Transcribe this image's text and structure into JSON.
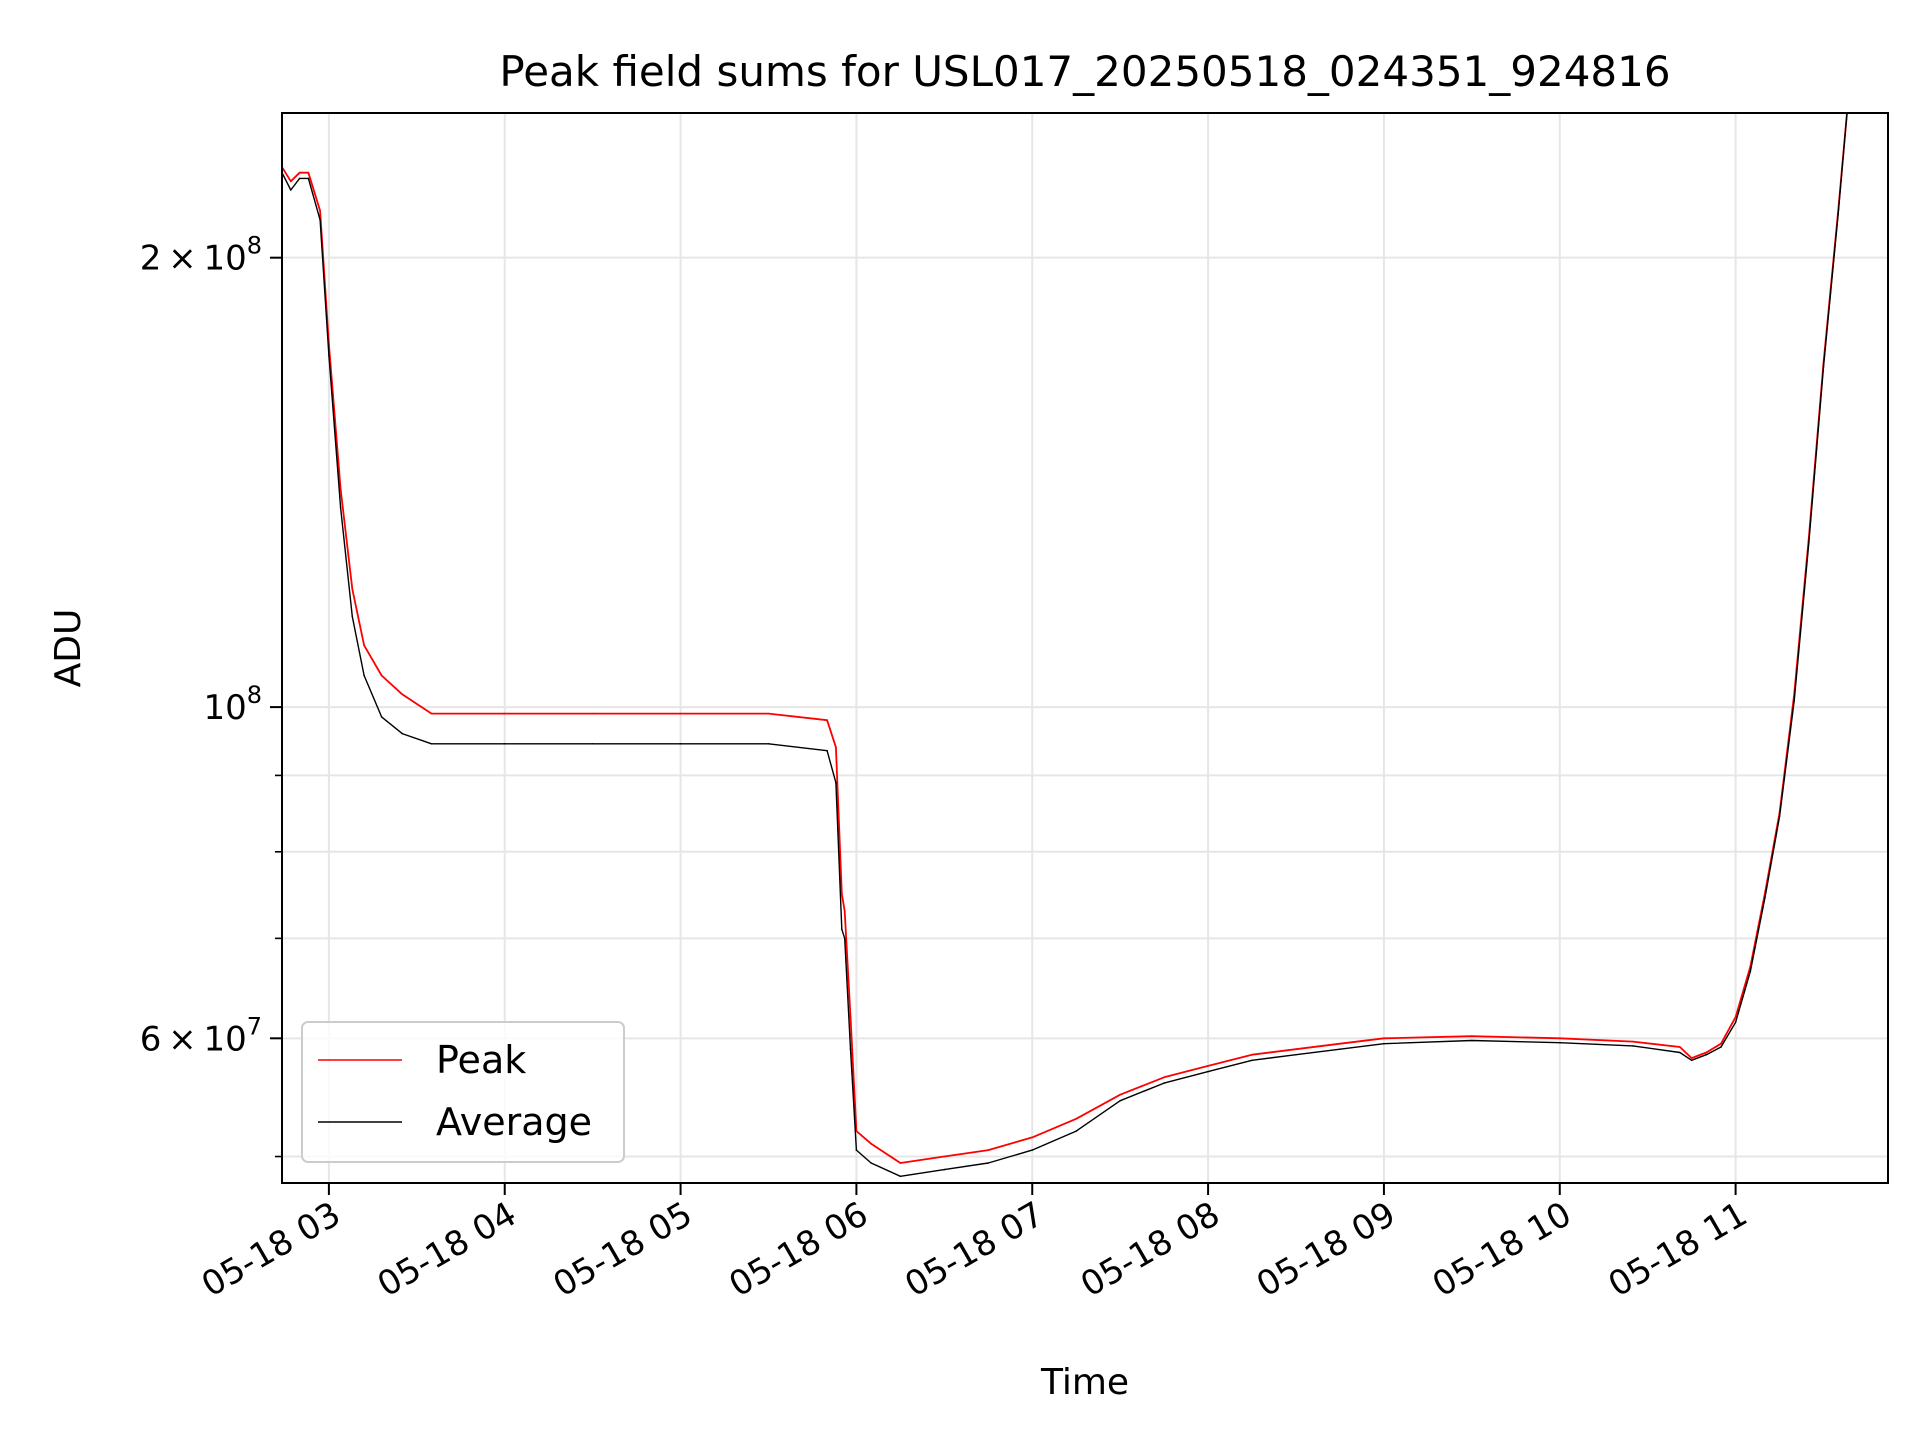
{
  "chart_data": {
    "type": "line",
    "title": "Peak field sums for USL017_20250518_024351_924816",
    "xlabel": "Time",
    "ylabel": "ADU",
    "y_scale": "log",
    "grid": true,
    "legend_position": "lower-left",
    "x_range": [
      "05-18 02:44",
      "05-18 11:52"
    ],
    "y_range": [
      48000000,
      250000000
    ],
    "x_ticks": [
      "05-18 03",
      "05-18 04",
      "05-18 05",
      "05-18 06",
      "05-18 07",
      "05-18 08",
      "05-18 09",
      "05-18 10",
      "05-18 11"
    ],
    "y_ticks": [
      {
        "value": 60000000,
        "label": "6 × 10^7",
        "mantissa": "6",
        "exponent": "7"
      },
      {
        "value": 100000000,
        "label": "10^8",
        "mantissa": "",
        "exponent": "8"
      },
      {
        "value": 200000000,
        "label": "2 × 10^8",
        "mantissa": "2",
        "exponent": "8"
      }
    ],
    "y_minor_ticks": [
      50000000,
      70000000,
      80000000,
      90000000
    ],
    "series": [
      {
        "name": "Peak",
        "color": "#ff0000",
        "x": [
          "05-18 02:44",
          "05-18 02:47",
          "05-18 02:50",
          "05-18 02:53",
          "05-18 02:57",
          "05-18 03:00",
          "05-18 03:04",
          "05-18 03:08",
          "05-18 03:12",
          "05-18 03:18",
          "05-18 03:25",
          "05-18 03:35",
          "05-18 04:00",
          "05-18 04:30",
          "05-18 05:00",
          "05-18 05:30",
          "05-18 05:50",
          "05-18 05:53",
          "05-18 05:55",
          "05-18 05:56",
          "05-18 05:58",
          "05-18 06:00",
          "05-18 06:05",
          "05-18 06:15",
          "05-18 06:30",
          "05-18 06:45",
          "05-18 07:00",
          "05-18 07:15",
          "05-18 07:30",
          "05-18 07:45",
          "05-18 08:00",
          "05-18 08:15",
          "05-18 08:30",
          "05-18 08:45",
          "05-18 09:00",
          "05-18 09:30",
          "05-18 10:00",
          "05-18 10:25",
          "05-18 10:41",
          "05-18 10:45",
          "05-18 10:50",
          "05-18 10:55",
          "05-18 11:00",
          "05-18 11:05",
          "05-18 11:10",
          "05-18 11:15",
          "05-18 11:20",
          "05-18 11:25",
          "05-18 11:30",
          "05-18 11:35",
          "05-18 11:38"
        ],
        "values": [
          230000000,
          225000000,
          228000000,
          228000000,
          215000000,
          175000000,
          140000000,
          120000000,
          110000000,
          105000000,
          102000000,
          99000000,
          99000000,
          99000000,
          99000000,
          99000000,
          98000000,
          94000000,
          75000000,
          73000000,
          62000000,
          52000000,
          51000000,
          49500000,
          50000000,
          50500000,
          51500000,
          53000000,
          55000000,
          56500000,
          57500000,
          58500000,
          59000000,
          59500000,
          60000000,
          60200000,
          60000000,
          59700000,
          59200000,
          58200000,
          58700000,
          59500000,
          62000000,
          67000000,
          75000000,
          85000000,
          102000000,
          130000000,
          170000000,
          215000000,
          250000000
        ]
      },
      {
        "name": "Average",
        "color": "#000000",
        "x": [
          "05-18 02:44",
          "05-18 02:47",
          "05-18 02:50",
          "05-18 02:53",
          "05-18 02:57",
          "05-18 03:00",
          "05-18 03:04",
          "05-18 03:08",
          "05-18 03:12",
          "05-18 03:18",
          "05-18 03:25",
          "05-18 03:35",
          "05-18 04:00",
          "05-18 04:30",
          "05-18 05:00",
          "05-18 05:30",
          "05-18 05:50",
          "05-18 05:53",
          "05-18 05:55",
          "05-18 05:56",
          "05-18 05:58",
          "05-18 06:00",
          "05-18 06:05",
          "05-18 06:15",
          "05-18 06:30",
          "05-18 06:45",
          "05-18 07:00",
          "05-18 07:15",
          "05-18 07:30",
          "05-18 07:45",
          "05-18 08:00",
          "05-18 08:15",
          "05-18 08:30",
          "05-18 08:45",
          "05-18 09:00",
          "05-18 09:30",
          "05-18 10:00",
          "05-18 10:25",
          "05-18 10:41",
          "05-18 10:45",
          "05-18 10:50",
          "05-18 10:55",
          "05-18 11:00",
          "05-18 11:05",
          "05-18 11:10",
          "05-18 11:15",
          "05-18 11:20",
          "05-18 11:25",
          "05-18 11:30",
          "05-18 11:35",
          "05-18 11:38"
        ],
        "values": [
          228000000,
          222000000,
          226000000,
          226000000,
          212000000,
          172000000,
          136000000,
          115000000,
          105000000,
          98500000,
          96000000,
          94500000,
          94500000,
          94500000,
          94500000,
          94500000,
          93500000,
          89000000,
          71000000,
          70000000,
          59000000,
          50500000,
          49500000,
          48500000,
          49000000,
          49500000,
          50500000,
          52000000,
          54500000,
          56000000,
          57000000,
          58000000,
          58500000,
          59000000,
          59500000,
          59800000,
          59600000,
          59300000,
          58700000,
          58000000,
          58500000,
          59200000,
          61500000,
          66500000,
          74500000,
          84500000,
          101000000,
          129000000,
          169000000,
          214000000,
          250000000
        ]
      }
    ]
  }
}
